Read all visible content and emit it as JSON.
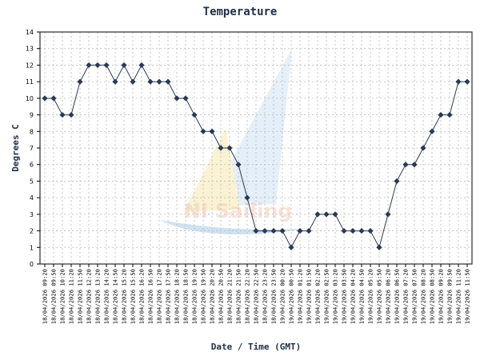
{
  "chart_data": {
    "type": "line",
    "title": "Temperature",
    "xlabel": "Date / Time (GMT)",
    "ylabel": "Degrees C",
    "ylim": [
      0,
      14
    ],
    "yticks": [
      0,
      1,
      2,
      3,
      4,
      5,
      6,
      7,
      8,
      9,
      10,
      11,
      12,
      13,
      14
    ],
    "grid": true,
    "legend": "none",
    "colors": {
      "line": "#2a3a55",
      "marker": "#2a3a55",
      "title": "#1f2f47",
      "grid": "#b8b8b8"
    },
    "watermark": "NI Sailing",
    "x": [
      "18/04/2026 09:20",
      "18/04/2026 09:50",
      "18/04/2026 10:20",
      "18/04/2026 11:20",
      "18/04/2026 11:50",
      "18/04/2026 12:20",
      "18/04/2026 13:20",
      "18/04/2026 14:20",
      "18/04/2026 14:50",
      "18/04/2026 15:20",
      "18/04/2026 15:50",
      "18/04/2026 16:20",
      "18/04/2026 16:50",
      "18/04/2026 17:20",
      "18/04/2026 17:50",
      "18/04/2026 18:20",
      "18/04/2026 18:50",
      "18/04/2026 19:20",
      "18/04/2026 19:50",
      "18/04/2026 20:20",
      "18/04/2026 20:50",
      "18/04/2026 21:20",
      "18/04/2026 21:50",
      "18/04/2026 22:20",
      "18/04/2026 22:50",
      "18/04/2026 23:20",
      "18/04/2026 23:50",
      "19/04/2026 00:20",
      "19/04/2026 00:50",
      "19/04/2026 01:20",
      "19/04/2026 01:50",
      "19/04/2026 02:20",
      "19/04/2026 02:50",
      "19/04/2026 03:20",
      "19/04/2026 03:50",
      "19/04/2026 04:20",
      "19/04/2026 04:50",
      "19/04/2026 05:20",
      "19/04/2026 05:50",
      "19/04/2026 06:20",
      "19/04/2026 06:50",
      "19/04/2026 07:20",
      "19/04/2026 07:50",
      "19/04/2026 08:20",
      "19/04/2026 08:50",
      "19/04/2026 09:20",
      "19/04/2026 09:50",
      "19/04/2026 11:20",
      "19/04/2026 11:50"
    ],
    "series": [
      {
        "values": [
          10,
          10,
          9,
          9,
          11,
          12,
          12,
          12,
          11,
          12,
          11,
          12,
          11,
          11,
          11,
          10,
          10,
          9,
          8,
          8,
          7,
          7,
          6,
          4,
          2,
          2,
          2,
          2,
          1,
          2,
          2,
          3,
          3,
          3,
          2,
          2,
          2,
          2,
          1,
          3,
          5,
          6,
          6,
          7,
          8,
          9,
          9,
          11,
          11
        ]
      }
    ]
  }
}
